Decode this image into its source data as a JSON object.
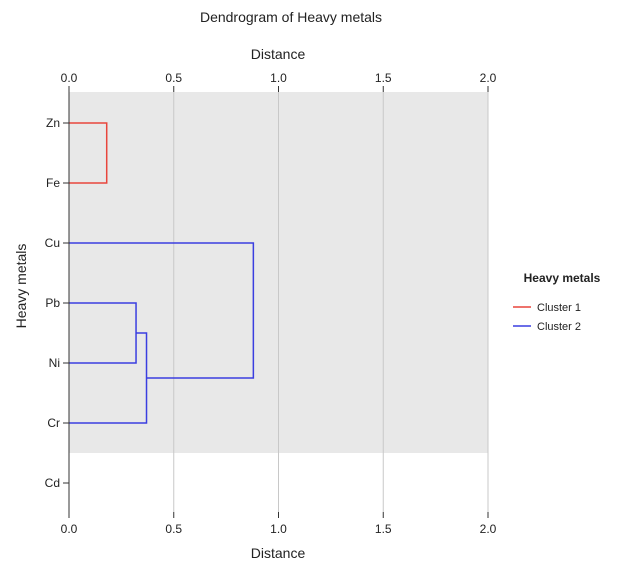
{
  "chart_data": {
    "type": "dendrogram",
    "title": "Dendrogram of Heavy metals",
    "xlabel_top": "Distance",
    "xlabel_bottom": "Distance",
    "ylabel": "Heavy metals",
    "xlim": [
      0,
      2
    ],
    "xticks": [
      "0.0",
      "0.5",
      "1.0",
      "1.5",
      "2.0"
    ],
    "tick_values": [
      0,
      0.5,
      1.0,
      1.5,
      2.0
    ],
    "leaves": [
      "Zn",
      "Fe",
      "Cu",
      "Pb",
      "Ni",
      "Cr",
      "Cd"
    ],
    "merges": [
      {
        "members": [
          "Zn",
          "Fe"
        ],
        "distance": 0.18,
        "cluster": "Cluster 1"
      },
      {
        "members": [
          "Pb",
          "Ni"
        ],
        "distance": 0.32,
        "cluster": "Cluster 2"
      },
      {
        "members": [
          "Pb+Ni",
          "Cr"
        ],
        "distance": 0.37,
        "cluster": "Cluster 2"
      },
      {
        "members": [
          "Cu",
          "Pb+Ni+Cr"
        ],
        "distance": 0.88,
        "cluster": "Cluster 2"
      }
    ],
    "legend": {
      "title": "Heavy metals",
      "placement": "right",
      "items": [
        {
          "label": "Cluster 1",
          "color": "#e8453c"
        },
        {
          "label": "Cluster 2",
          "color": "#3a3ee0"
        }
      ]
    },
    "colors": {
      "plot_bg": "#e8e8e8",
      "grid": "#c8c8c8",
      "axis": "#333333"
    },
    "grid": true
  }
}
